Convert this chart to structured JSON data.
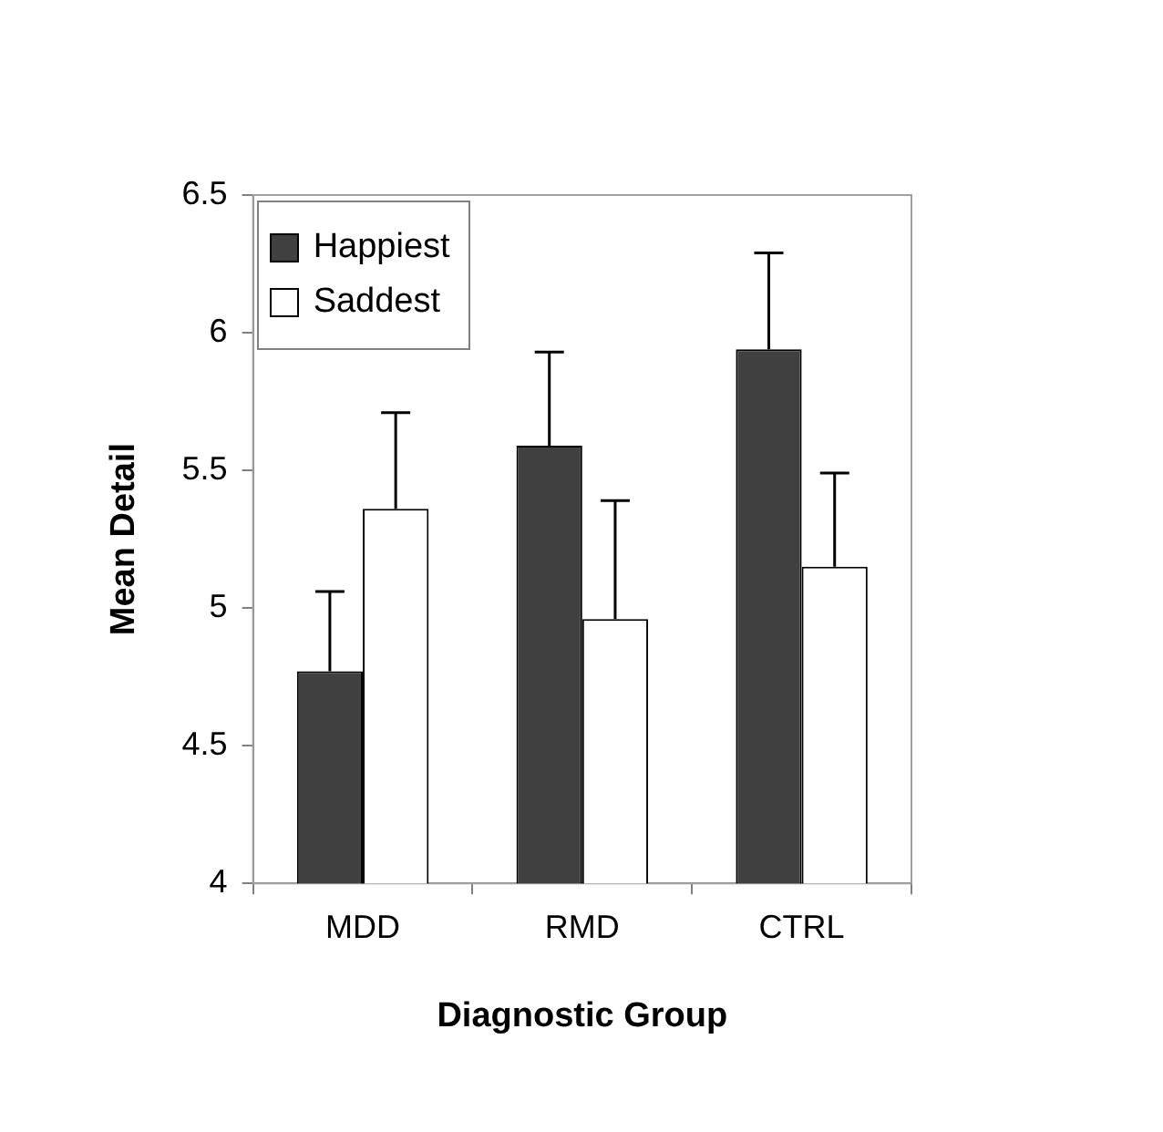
{
  "chart_data": {
    "type": "bar",
    "xlabel": "Diagnostic Group",
    "ylabel": "Mean Detail",
    "categories": [
      "MDD",
      "RMD",
      "CTRL"
    ],
    "series": [
      {
        "name": "Happiest",
        "color": "#404040",
        "values": [
          4.77,
          5.59,
          5.94
        ],
        "errors": [
          [
            4.77,
            5.06
          ],
          [
            5.59,
            5.93
          ],
          [
            5.94,
            6.29
          ]
        ]
      },
      {
        "name": "Saddest",
        "color": "#ffffff",
        "values": [
          5.36,
          4.96,
          5.15
        ],
        "errors": [
          [
            5.36,
            5.71
          ],
          [
            4.96,
            5.39
          ],
          [
            5.15,
            5.49
          ]
        ]
      }
    ],
    "ylim": [
      4,
      6.5
    ],
    "yticks": [
      4,
      4.5,
      5,
      5.5,
      6,
      6.5
    ],
    "grid": false,
    "legend": "top left"
  }
}
